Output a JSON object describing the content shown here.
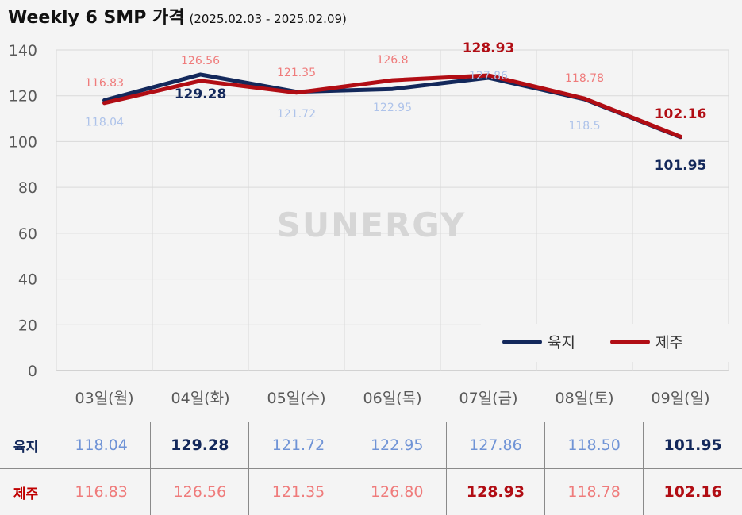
{
  "title": "Weekly 6 SMP 가격",
  "subtitle": "(2025.02.03 - 2025.02.09)",
  "watermark": "SUNERGY",
  "chart_data": {
    "type": "line",
    "categories": [
      "03일(월)",
      "04일(화)",
      "05일(수)",
      "06일(목)",
      "07일(금)",
      "08일(토)",
      "09일(일)"
    ],
    "ylim": [
      0,
      140
    ],
    "yticks": [
      0,
      20,
      40,
      60,
      80,
      100,
      120,
      140
    ],
    "grid": true,
    "legend_position": "bottom-right",
    "series": [
      {
        "name": "육지",
        "color": "#13285b",
        "values": [
          118.04,
          129.28,
          121.72,
          122.95,
          127.86,
          118.5,
          101.95
        ],
        "labels": [
          "118.04",
          "129.28",
          "121.72",
          "122.95",
          "127.86",
          "118.5",
          "101.95"
        ]
      },
      {
        "name": "제주",
        "color": "#b10d14",
        "values": [
          116.83,
          126.56,
          121.35,
          126.8,
          128.93,
          118.78,
          102.16
        ],
        "labels": [
          "116.83",
          "126.56",
          "121.35",
          "126.8",
          "128.93",
          "118.78",
          "102.16"
        ]
      }
    ]
  },
  "table": {
    "rows": [
      {
        "label": "육지",
        "label_color": "#13285b",
        "values": [
          "118.04",
          "129.28",
          "121.72",
          "122.95",
          "127.86",
          "118.50",
          "101.95"
        ]
      },
      {
        "label": "제주",
        "label_color": "#c00000",
        "values": [
          "116.83",
          "126.56",
          "121.35",
          "126.80",
          "128.93",
          "118.78",
          "102.16"
        ]
      }
    ]
  },
  "colors": {
    "land_strong": "#13285b",
    "land_light": "#6f93d6",
    "land_pale": "#aec3ea",
    "jeju_strong": "#b10d14",
    "jeju_light": "#ef7b7b"
  }
}
